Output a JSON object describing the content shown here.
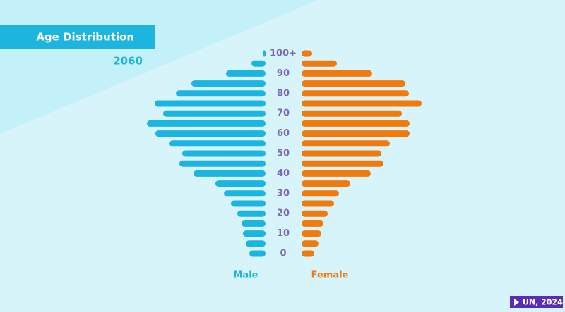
{
  "chart_data": {
    "type": "pyramid",
    "title": "Age Distribution",
    "subtitle": "2060",
    "source": "UN, 2024",
    "categories": [
      "100+",
      null,
      "90",
      null,
      "80",
      null,
      "70",
      null,
      "60",
      null,
      "50",
      null,
      "40",
      null,
      "30",
      null,
      "20",
      null,
      "10",
      null,
      "0"
    ],
    "series": [
      {
        "name": "Male",
        "color": "#1cb5e0",
        "values": [
          4,
          20,
          56,
          105,
          127,
          157,
          145,
          168,
          156,
          136,
          118,
          122,
          102,
          71,
          59,
          49,
          40,
          34,
          32,
          28,
          23
        ]
      },
      {
        "name": "Female",
        "color": "#f07a0b",
        "values": [
          15,
          50,
          100,
          147,
          152,
          170,
          142,
          153,
          153,
          125,
          113,
          116,
          98,
          69,
          53,
          46,
          37,
          31,
          28,
          24,
          18
        ]
      }
    ]
  }
}
